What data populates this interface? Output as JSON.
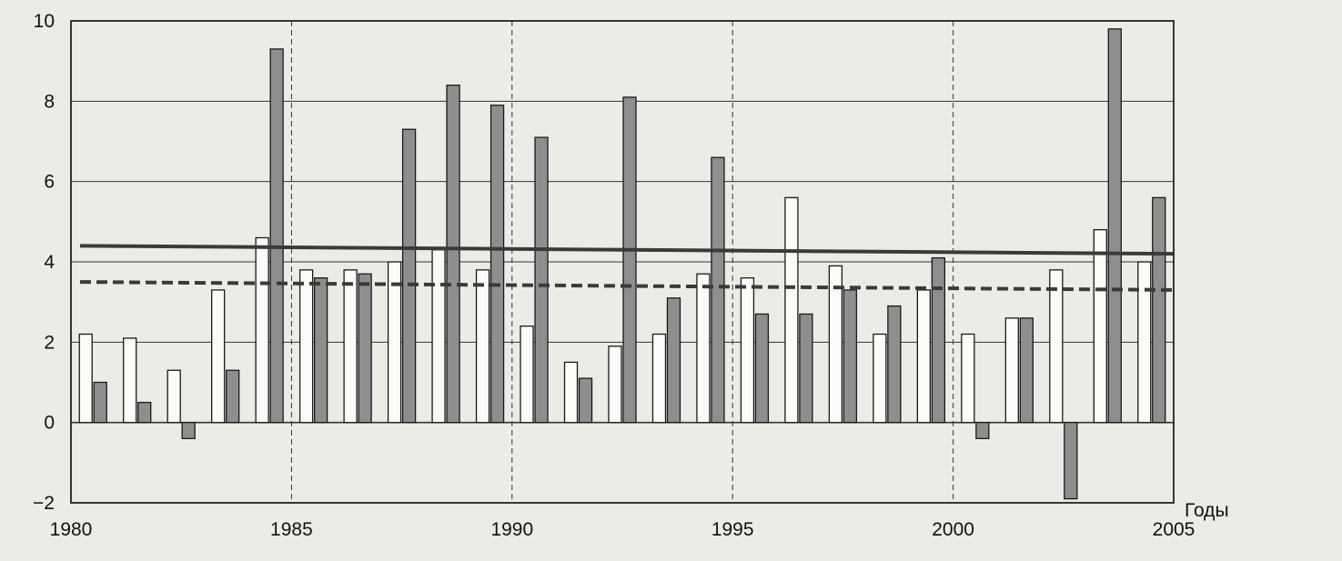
{
  "chart_data": {
    "type": "bar",
    "title": "",
    "xlabel": "Годы",
    "ylabel": "",
    "ylim": [
      -2,
      10
    ],
    "xlim": [
      1980,
      2005
    ],
    "y_ticks": [
      "−2",
      "0",
      "2",
      "4",
      "6",
      "8",
      "10"
    ],
    "x_ticks": [
      "1980",
      "1985",
      "1990",
      "1995",
      "2000",
      "2005"
    ],
    "grid": "horizontal solid, vertical dashed every 5 years",
    "categories": [
      "1981",
      "1982",
      "1983",
      "1984",
      "1985",
      "1986",
      "1987",
      "1988",
      "1989",
      "1990",
      "1991",
      "1992",
      "1993",
      "1994",
      "1995",
      "1996",
      "1997",
      "1998",
      "1999",
      "2000",
      "2001",
      "2002",
      "2003",
      "2004",
      "2005"
    ],
    "series": [
      {
        "style": "white",
        "values": [
          2.2,
          2.1,
          1.3,
          3.3,
          4.6,
          3.8,
          3.8,
          4.0,
          4.3,
          3.8,
          2.4,
          1.5,
          1.9,
          2.2,
          3.7,
          3.6,
          5.6,
          3.9,
          2.2,
          3.3,
          2.2,
          2.6,
          3.8,
          4.8,
          4.0
        ]
      },
      {
        "style": "gray",
        "values": [
          1.0,
          0.5,
          -0.4,
          1.3,
          9.3,
          3.6,
          3.7,
          7.3,
          8.4,
          7.9,
          7.1,
          1.1,
          8.1,
          3.1,
          6.6,
          2.7,
          2.7,
          3.3,
          2.9,
          4.1,
          -0.4,
          2.6,
          -1.9,
          9.8,
          5.6
        ]
      }
    ],
    "trend_lines": [
      {
        "style": "solid",
        "start": 4.4,
        "end": 4.2
      },
      {
        "style": "dashed",
        "start": 3.5,
        "end": 3.3
      }
    ],
    "colors": {
      "background": "#ecebe6",
      "white_bar": "#fbfbf8",
      "gray_bar": "#8e8e8e",
      "trend": "#3a3a3a",
      "grid": "#333333"
    }
  }
}
